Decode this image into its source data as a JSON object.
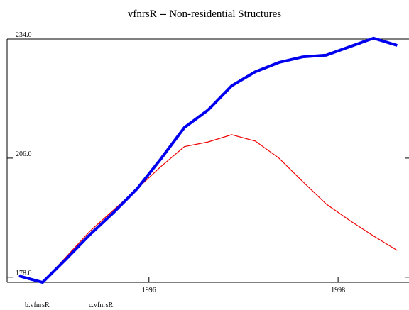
{
  "chart_data": {
    "type": "line",
    "title": "vfnrsR -- Non-residential Structures",
    "x": [
      1994.625,
      1994.875,
      1995.125,
      1995.375,
      1995.625,
      1995.875,
      1996.125,
      1996.375,
      1996.625,
      1996.875,
      1997.125,
      1997.375,
      1997.625,
      1997.875,
      1998.125,
      1998.375,
      1998.625
    ],
    "series": [
      {
        "name": "b.vfnrsR",
        "color": "#0000ee",
        "values": [
          178.3,
          176.8,
          182.3,
          188.0,
          193.2,
          198.8,
          205.8,
          213.2,
          217.3,
          223.0,
          226.3,
          228.5,
          229.8,
          230.2,
          232.2,
          234.2,
          232.5
        ]
      },
      {
        "name": "c.vfnrsR",
        "color": "#ee0000",
        "values": [
          178.3,
          176.8,
          182.8,
          188.8,
          193.8,
          198.8,
          204.0,
          208.7,
          209.8,
          211.5,
          210.0,
          206.0,
          200.5,
          195.2,
          191.3,
          187.7,
          184.3
        ]
      }
    ],
    "xlim": [
      1994.5,
      1998.75
    ],
    "xticks": [
      1996,
      1998
    ],
    "ylim": [
      176.8,
      234.0
    ],
    "yticks": [
      {
        "value": 178,
        "label": "178.0"
      },
      {
        "value": 206,
        "label": "206.0"
      },
      {
        "value": 234,
        "label": "234.0"
      }
    ]
  }
}
